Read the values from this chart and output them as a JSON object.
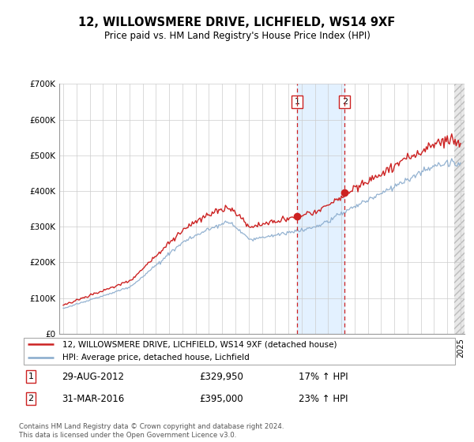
{
  "title": "12, WILLOWSMERE DRIVE, LICHFIELD, WS14 9XF",
  "subtitle": "Price paid vs. HM Land Registry's House Price Index (HPI)",
  "ylim": [
    0,
    700000
  ],
  "xlim_start": 1994.7,
  "xlim_end": 2025.3,
  "hpi_color": "#88aacc",
  "price_color": "#cc2222",
  "sale1_x": 2012.66,
  "sale1_y": 329950,
  "sale2_x": 2016.25,
  "sale2_y": 395000,
  "shade_color": "#ddeeff",
  "hatch_color": "#dddddd",
  "legend_line1": "12, WILLOWSMERE DRIVE, LICHFIELD, WS14 9XF (detached house)",
  "legend_line2": "HPI: Average price, detached house, Lichfield",
  "footer": "Contains HM Land Registry data © Crown copyright and database right 2024.\nThis data is licensed under the Open Government Licence v3.0.",
  "background_color": "#ffffff",
  "grid_color": "#cccccc"
}
